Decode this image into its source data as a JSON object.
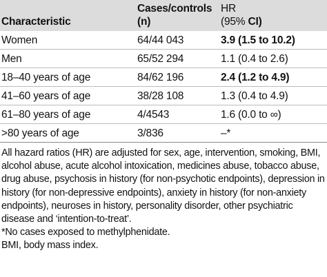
{
  "table": {
    "header": [
      "Characteristic",
      [
        "Cases/controls",
        "(n)"
      ],
      [
        "HR",
        "(95% ",
        "CI)"
      ]
    ],
    "rows": [
      {
        "cells": [
          "Women",
          "64/44 043",
          "3.9 (1.5 to 10.2)"
        ],
        "bold": true
      },
      {
        "cells": [
          "Men",
          "65/52 294",
          "1.1 (0.4 to 2.6)"
        ],
        "bold": false
      },
      {
        "cells": [
          "18–40 years of age",
          "84/62 196",
          "2.4 (1.2 to 4.9)"
        ],
        "bold": true
      },
      {
        "cells": [
          "41–60 years of age",
          "38/28 108",
          "1.3 (0.4 to 4.9)"
        ],
        "bold": false
      },
      {
        "cells": [
          "61–80 years of age",
          "4/4543",
          "1.6 (0.0 to ∞)"
        ],
        "bold": false
      },
      {
        "cells": [
          ">80 years of age",
          "3/836",
          "–*"
        ],
        "bold": false
      }
    ]
  },
  "notes": [
    "All hazard ratios (HR) are adjusted for sex, age, intervention, smoking, BMI, alcohol abuse, acute alcohol intoxication, medicines abuse, tobacco abuse, drug abuse, psychosis in history (for non-psychotic endpoints), depression in history (for non-depressive endpoints), anxiety in history (for non-anxiety endpoints), neuroses in history, personality disorder, other psychiatric disease and ‘intention-to-treat’.",
    "*No cases exposed to methylphenidate.",
    "BMI, body mass index."
  ]
}
